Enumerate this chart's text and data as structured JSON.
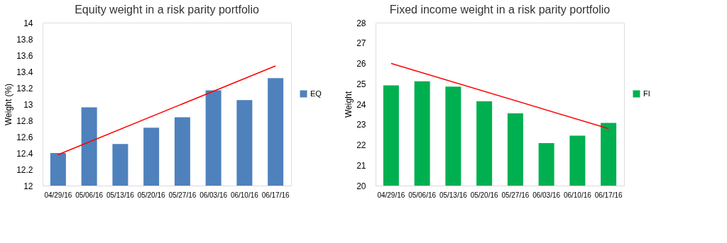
{
  "chart_data": [
    {
      "type": "bar",
      "title": "Equity weight in a risk parity portfolio",
      "ylabel": "Weight (%)",
      "categories": [
        "04/29/16",
        "05/06/16",
        "05/13/16",
        "05/20/16",
        "05/27/16",
        "06/03/16",
        "06/10/16",
        "06/17/16"
      ],
      "series": [
        {
          "name": "EQ",
          "color": "#4f81bd",
          "values": [
            12.4,
            12.96,
            12.51,
            12.71,
            12.84,
            13.17,
            13.05,
            13.32
          ]
        },
        {
          "type": "line",
          "color": "#ff0000",
          "x": [
            "04/29/16",
            "06/17/16"
          ],
          "values": [
            12.38,
            13.47
          ]
        }
      ],
      "ylim": [
        12,
        14
      ],
      "yticks": [
        12,
        {
          "value": 12.2,
          "label": "12.2"
        },
        {
          "value": 12.4,
          "label": "12.4"
        },
        {
          "value": 12.6,
          "label": "12.6"
        },
        {
          "value": 12.8,
          "label": "12.8"
        },
        13,
        {
          "value": 13.2,
          "label": "13.2"
        },
        {
          "value": 13.4,
          "label": "13.4"
        },
        {
          "value": 13.6,
          "label": "13.6"
        },
        {
          "value": 13.8,
          "label": "13.8"
        },
        14
      ],
      "grid": false,
      "legend": "right"
    },
    {
      "type": "bar",
      "title": "Fixed income weight in a risk parity portfolio",
      "ylabel": "Weight",
      "categories": [
        "04/29/16",
        "05/06/16",
        "05/13/16",
        "05/20/16",
        "05/27/16",
        "06/03/16",
        "06/10/16",
        "06/17/16"
      ],
      "series": [
        {
          "name": "FI",
          "color": "#00b050",
          "values": [
            24.92,
            25.12,
            24.86,
            24.14,
            23.55,
            22.09,
            22.45,
            23.08
          ]
        },
        {
          "type": "line",
          "color": "#ff0000",
          "x": [
            "04/29/16",
            "06/17/16"
          ],
          "values": [
            26.0,
            22.8
          ]
        }
      ],
      "ylim": [
        20,
        28
      ],
      "yticks": [
        20,
        21,
        22,
        23,
        24,
        25,
        26,
        27,
        28
      ],
      "grid": false,
      "legend": "right"
    }
  ]
}
